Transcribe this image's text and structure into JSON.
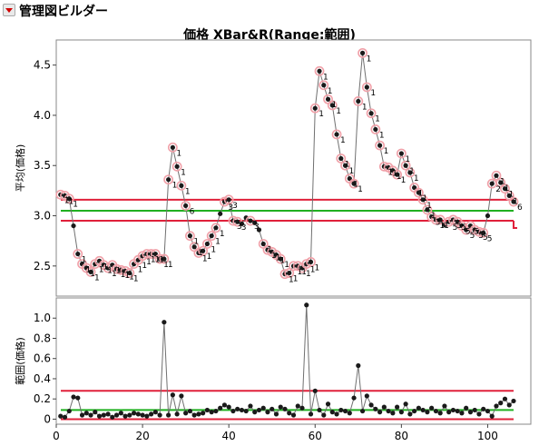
{
  "app": {
    "title": "管理図ビルダー",
    "menu_icon": "red-triangle-disclosure-icon"
  },
  "chart_data": [
    {
      "type": "line",
      "title": "価格 XBar&R(Range:範囲)",
      "ylabel": "平均(価格)",
      "xlabel": "",
      "xlim": [
        0,
        110
      ],
      "ylim": [
        2.2,
        4.75
      ],
      "yticks": [
        2.5,
        3.0,
        3.5,
        4.0,
        4.5
      ],
      "ytick_labels": [
        "2.5",
        "3.0",
        "3.5",
        "4.0",
        "4.5"
      ],
      "center_line": 3.05,
      "ucl": 3.16,
      "lcl": 2.95,
      "limit_colors": {
        "center": "#21b021",
        "limits": "#e0203a",
        "series": "#707070",
        "flag_ring": "#f0a0a8"
      },
      "x": [
        1,
        2,
        3,
        4,
        5,
        6,
        7,
        8,
        9,
        10,
        11,
        12,
        13,
        14,
        15,
        16,
        17,
        18,
        19,
        20,
        21,
        22,
        23,
        24,
        25,
        26,
        27,
        28,
        29,
        30,
        31,
        32,
        33,
        34,
        35,
        36,
        37,
        38,
        39,
        40,
        41,
        42,
        43,
        44,
        45,
        46,
        47,
        48,
        49,
        50,
        51,
        52,
        53,
        54,
        55,
        56,
        57,
        58,
        59,
        60,
        61,
        62,
        63,
        64,
        65,
        66,
        67,
        68,
        69,
        70,
        71,
        72,
        73,
        74,
        75,
        76,
        77,
        78,
        79,
        80,
        81,
        82,
        83,
        84,
        85,
        86,
        87,
        88,
        89,
        90,
        91,
        92,
        93,
        94,
        95,
        96,
        97,
        98,
        99,
        100,
        101,
        102,
        103,
        104,
        105,
        106
      ],
      "values": [
        3.21,
        3.2,
        3.17,
        2.9,
        2.62,
        2.52,
        2.48,
        2.44,
        2.52,
        2.55,
        2.51,
        2.48,
        2.51,
        2.47,
        2.46,
        2.45,
        2.43,
        2.52,
        2.56,
        2.6,
        2.62,
        2.62,
        2.62,
        2.57,
        2.57,
        3.36,
        3.68,
        3.49,
        3.3,
        3.1,
        2.8,
        2.69,
        2.63,
        2.65,
        2.72,
        2.8,
        2.88,
        3.02,
        3.14,
        3.16,
        2.95,
        2.94,
        2.92,
        2.98,
        2.95,
        2.93,
        2.86,
        2.72,
        2.66,
        2.64,
        2.61,
        2.57,
        2.42,
        2.43,
        2.5,
        2.5,
        2.48,
        2.52,
        2.54,
        4.07,
        4.44,
        4.3,
        4.16,
        4.1,
        3.81,
        3.57,
        3.5,
        3.37,
        3.32,
        4.14,
        4.62,
        4.28,
        4.02,
        3.86,
        3.7,
        3.49,
        3.48,
        3.45,
        3.41,
        3.62,
        3.5,
        3.43,
        3.28,
        3.23,
        3.16,
        3.06,
        2.99,
        2.96,
        2.96,
        2.91,
        2.94,
        2.96,
        2.94,
        2.9,
        2.86,
        2.9,
        2.86,
        2.84,
        2.83,
        3.0,
        3.32,
        3.4,
        3.33,
        3.27,
        3.2,
        3.14
      ],
      "point_labels": {
        "1": "1",
        "2": "1",
        "3": "1",
        "5": "1",
        "6": "1",
        "7": "1",
        "8": "1",
        "9": "1",
        "10": "1",
        "11": "1",
        "12": "1",
        "13": "1",
        "14": "1",
        "15": "1",
        "16": "1",
        "17": "1",
        "18": "1",
        "19": "1",
        "20": "1",
        "21": "1",
        "22": "1",
        "23": "1",
        "24": "1",
        "25": "1",
        "26": "1",
        "27": "1",
        "28": "1",
        "29": "1",
        "30": "6",
        "31": "1",
        "32": "1",
        "33": "1",
        "34": "1",
        "35": "1",
        "36": "1",
        "37": "1",
        "39": "3",
        "40": "3",
        "41": "3",
        "42": "3",
        "45": "3",
        "48": "1",
        "49": "1",
        "50": "1",
        "51": "1",
        "52": "1",
        "53": "1",
        "54": "1",
        "55": "1",
        "56": "1",
        "57": "1",
        "58": "1",
        "59": "1",
        "60": "1",
        "61": "1",
        "62": "1",
        "63": "1",
        "64": "1",
        "65": "1",
        "66": "1",
        "67": "1",
        "68": "1",
        "69": "1",
        "70": "1",
        "71": "1",
        "72": "1",
        "73": "1",
        "74": "1",
        "75": "1",
        "76": "1",
        "77": "1",
        "78": "1",
        "79": "1",
        "80": "1",
        "81": "1",
        "82": "1",
        "83": "1",
        "84": "1",
        "85": "1",
        "86": "1",
        "87": "3",
        "88": "1",
        "89": "1",
        "91": "5",
        "92": "5",
        "93": "5",
        "94": "5",
        "95": "5",
        "96": "5",
        "97": "5",
        "98": "5",
        "99": "5",
        "101": "2",
        "102": "1",
        "103": "1",
        "104": "1",
        "105": "1",
        "106": "6"
      }
    },
    {
      "type": "line",
      "title": "",
      "ylabel": "範囲(価格)",
      "xlabel": "",
      "xlim": [
        0,
        110
      ],
      "ylim": [
        -0.05,
        1.2
      ],
      "yticks": [
        0,
        0.2,
        0.4,
        0.6,
        0.8,
        1.0
      ],
      "ytick_labels": [
        "0",
        "0.2",
        "0.4",
        "0.6",
        "0.8",
        "1.0"
      ],
      "xticks": [
        0,
        20,
        40,
        60,
        80,
        100
      ],
      "xtick_labels": [
        "0",
        "20",
        "40",
        "60",
        "80",
        "100"
      ],
      "center_line": 0.09,
      "ucl": 0.28,
      "lcl": 0.0,
      "x": [
        1,
        2,
        3,
        4,
        5,
        6,
        7,
        8,
        9,
        10,
        11,
        12,
        13,
        14,
        15,
        16,
        17,
        18,
        19,
        20,
        21,
        22,
        23,
        24,
        25,
        26,
        27,
        28,
        29,
        30,
        31,
        32,
        33,
        34,
        35,
        36,
        37,
        38,
        39,
        40,
        41,
        42,
        43,
        44,
        45,
        46,
        47,
        48,
        49,
        50,
        51,
        52,
        53,
        54,
        55,
        56,
        57,
        58,
        59,
        60,
        61,
        62,
        63,
        64,
        65,
        66,
        67,
        68,
        69,
        70,
        71,
        72,
        73,
        74,
        75,
        76,
        77,
        78,
        79,
        80,
        81,
        82,
        83,
        84,
        85,
        86,
        87,
        88,
        89,
        90,
        91,
        92,
        93,
        94,
        95,
        96,
        97,
        98,
        99,
        100,
        101,
        102,
        103,
        104,
        105,
        106
      ],
      "values": [
        0.03,
        0.02,
        0.08,
        0.22,
        0.21,
        0.04,
        0.06,
        0.04,
        0.07,
        0.03,
        0.04,
        0.05,
        0.02,
        0.04,
        0.06,
        0.03,
        0.04,
        0.06,
        0.05,
        0.04,
        0.03,
        0.05,
        0.07,
        0.04,
        0.96,
        0.04,
        0.24,
        0.05,
        0.23,
        0.06,
        0.08,
        0.04,
        0.05,
        0.06,
        0.09,
        0.07,
        0.08,
        0.11,
        0.14,
        0.12,
        0.08,
        0.1,
        0.09,
        0.08,
        0.13,
        0.07,
        0.09,
        0.11,
        0.07,
        0.1,
        0.05,
        0.12,
        0.1,
        0.06,
        0.04,
        0.13,
        0.11,
        1.13,
        0.05,
        0.28,
        0.09,
        0.04,
        0.15,
        0.07,
        0.05,
        0.09,
        0.08,
        0.06,
        0.21,
        0.53,
        0.08,
        0.23,
        0.14,
        0.1,
        0.07,
        0.12,
        0.08,
        0.06,
        0.12,
        0.07,
        0.15,
        0.05,
        0.08,
        0.11,
        0.09,
        0.07,
        0.11,
        0.08,
        0.06,
        0.13,
        0.07,
        0.09,
        0.08,
        0.06,
        0.11,
        0.07,
        0.09,
        0.05,
        0.1,
        0.08,
        0.03,
        0.13,
        0.16,
        0.2,
        0.14,
        0.18
      ]
    }
  ]
}
